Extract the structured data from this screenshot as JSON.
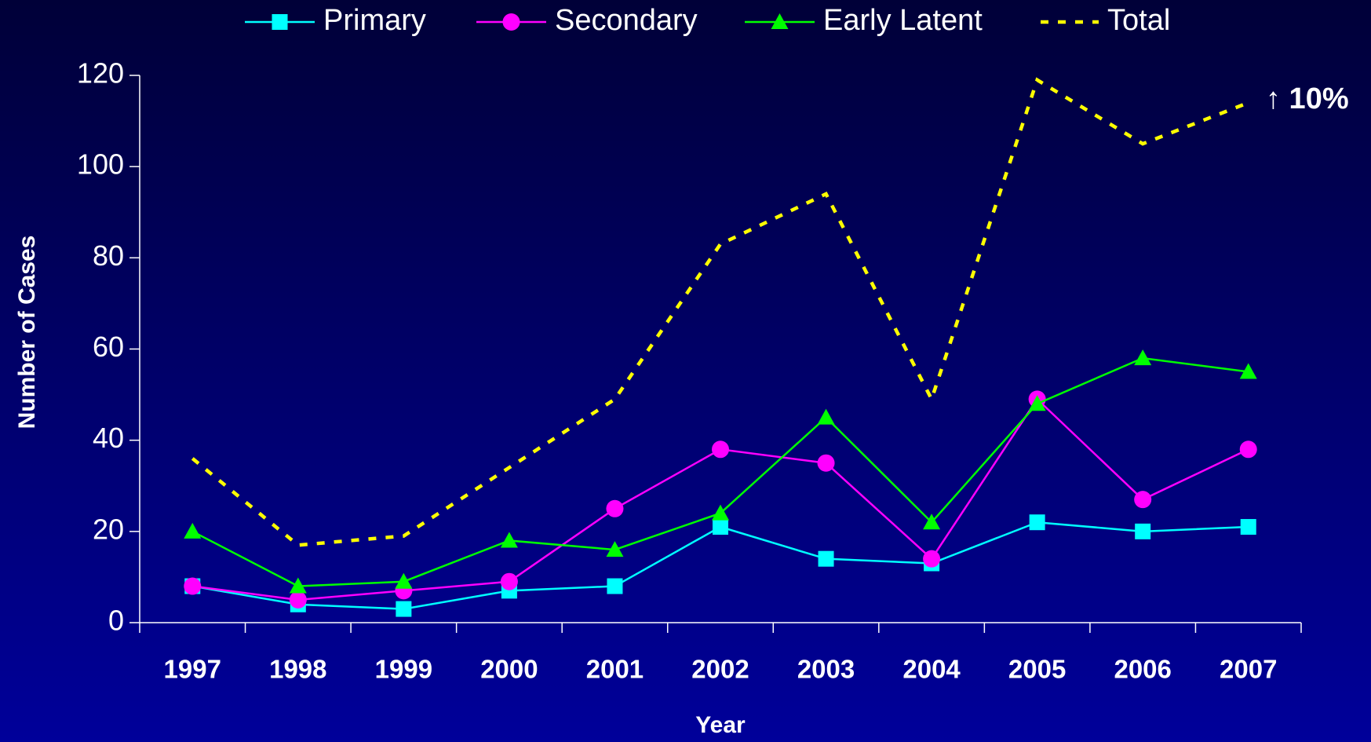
{
  "chart_data": {
    "type": "line",
    "categories": [
      "1997",
      "1998",
      "1999",
      "2000",
      "2001",
      "2002",
      "2003",
      "2004",
      "2005",
      "2006",
      "2007"
    ],
    "series": [
      {
        "name": "Primary",
        "color": "#00ffff",
        "marker": "square",
        "values": [
          8,
          4,
          3,
          7,
          8,
          21,
          14,
          13,
          22,
          20,
          21
        ]
      },
      {
        "name": "Secondary",
        "color": "#ff00ff",
        "marker": "circle",
        "values": [
          8,
          5,
          7,
          9,
          25,
          38,
          35,
          14,
          49,
          27,
          38
        ]
      },
      {
        "name": "Early Latent",
        "color": "#00ff00",
        "marker": "triangle",
        "values": [
          20,
          8,
          9,
          18,
          16,
          24,
          45,
          22,
          48,
          58,
          55
        ]
      },
      {
        "name": "Total",
        "color": "#ffff00",
        "dashed": true,
        "values": [
          36,
          17,
          19,
          34,
          49,
          83,
          94,
          49,
          119,
          105,
          114
        ]
      }
    ],
    "ylim": [
      0,
      120
    ],
    "yticks": [
      0,
      20,
      40,
      60,
      80,
      100,
      120
    ],
    "xlabel": "Year",
    "ylabel": "Number of Cases",
    "annotations": [
      "↑ 10%"
    ]
  }
}
